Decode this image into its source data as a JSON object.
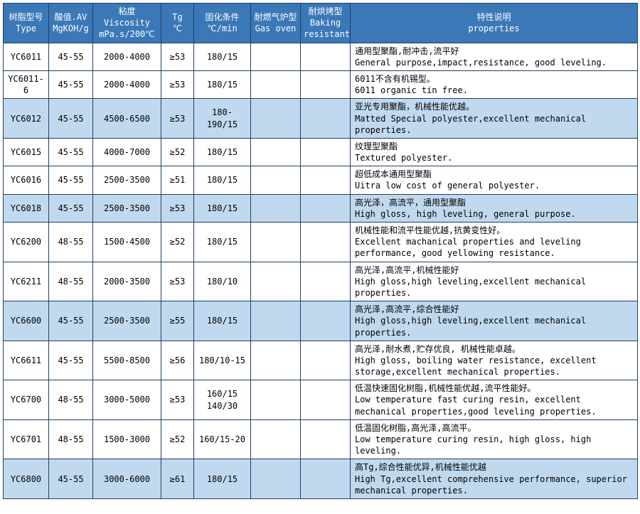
{
  "table": {
    "header_bg": "#3b78b8",
    "header_fg": "#ffffff",
    "border_color": "#1f3f66",
    "shade_bg": "#c1d9ef",
    "plain_bg": "#ffffff",
    "columns": [
      {
        "zh": "树脂型号",
        "en": "Type"
      },
      {
        "zh": "酸值.AV",
        "en": "MgKOH/g"
      },
      {
        "zh": "粘度",
        "en": "Viscosity",
        "en2": "mPa.s/200℃"
      },
      {
        "zh": "Tg",
        "en": "℃"
      },
      {
        "zh": "固化条件",
        "en": "℃/min"
      },
      {
        "zh": "耐燃气炉型",
        "en": "Gas oven"
      },
      {
        "zh": "耐烘烤型",
        "en": "Baking",
        "en2": "resistant"
      },
      {
        "zh": "特性说明",
        "en": "properties"
      }
    ],
    "rows": [
      {
        "shade": false,
        "type": "YC6011",
        "av": "45-55",
        "visc": "2000-4000",
        "tg": "≥53",
        "cure": "180/15",
        "gas": "",
        "bake": "",
        "zh": "通用型聚酯,耐冲击,流平好",
        "en": "General purpose,impact,resistance, good leveling."
      },
      {
        "shade": false,
        "type": "YC6011-6",
        "av": "45-55",
        "visc": "2000-4000",
        "tg": "≥53",
        "cure": "180/15",
        "gas": "",
        "bake": "",
        "zh": "6011不含有机锡型。",
        "en": "6011  organic tin free."
      },
      {
        "shade": true,
        "type": "YC6012",
        "av": "45-55",
        "visc": "4500-6500",
        "tg": "≥53",
        "cure": "180-190/15",
        "gas": "",
        "bake": "",
        "zh": "亚光专用聚酯，机械性能优越。",
        "en": "Matted Special polyester,excellent mechanical properties."
      },
      {
        "shade": false,
        "type": "YC6015",
        "av": "45-55",
        "visc": "4000-7000",
        "tg": "≥52",
        "cure": "180/15",
        "gas": "",
        "bake": "",
        "zh": "纹理型聚酯",
        "en": "Textured polyester."
      },
      {
        "shade": false,
        "type": "YC6016",
        "av": "45-55",
        "visc": "2500-3500",
        "tg": "≥51",
        "cure": "180/15",
        "gas": "",
        "bake": "",
        "zh": "超低成本通用型聚酯",
        "en": "Uitra low cost of general polyester."
      },
      {
        "shade": true,
        "type": "YC6018",
        "av": "45-55",
        "visc": "2500-3500",
        "tg": "≥53",
        "cure": "180/15",
        "gas": "",
        "bake": "",
        "zh": "高光泽，高流平，通用型聚酯",
        "en": "High gloss, high leveling, general purpose."
      },
      {
        "shade": false,
        "type": "YC6200",
        "av": "48-55",
        "visc": "1500-4500",
        "tg": "≥52",
        "cure": "180/15",
        "gas": "",
        "bake": "",
        "zh": "机械性能和流平性能优越,抗黄变性好。",
        "en": "Excellent machanical properties and leveling performance, good yellowing resistance."
      },
      {
        "shade": false,
        "type": "YC6211",
        "av": "48-55",
        "visc": "2000-3500",
        "tg": "≥53",
        "cure": "180/10",
        "gas": "",
        "bake": "",
        "zh": "高光泽,高流平,机械性能好",
        "en": "High gloss,high leveling,excellent mechanical properties."
      },
      {
        "shade": true,
        "type": "YC6600",
        "av": "45-55",
        "visc": "2500-3500",
        "tg": "≥55",
        "cure": "180/15",
        "gas": "",
        "bake": "",
        "zh": "高光泽,高流平,综合性能好",
        "en": "High gloss,high leveling,excellent mechanical properties."
      },
      {
        "shade": false,
        "type": "YC6611",
        "av": "45-55",
        "visc": "5500-8500",
        "tg": "≥56",
        "cure": "180/10-15",
        "gas": "",
        "bake": "",
        "zh": "高光泽,耐水煮,贮存优良, 机械性能卓越。",
        "en": "High gloss, boiling water resistance, excellent storage,excellent mechanical properties."
      },
      {
        "shade": false,
        "type": "YC6700",
        "av": "48-55",
        "visc": "3000-5000",
        "tg": "≥53",
        "cure": "160/15\n140/30",
        "gas": "",
        "bake": "",
        "zh": "低温快速固化树脂,机械性能优越,流平性能好。",
        "en": "Low temperature fast curing resin, excellent mechanical properties,good leveling properties."
      },
      {
        "shade": false,
        "type": "YC6701",
        "av": "48-55",
        "visc": "1500-3000",
        "tg": "≥52",
        "cure": "160/15-20",
        "gas": "",
        "bake": "",
        "zh": "低温固化树脂,高光泽,高流平。",
        "en": "Low temperature curing resin, high gloss, high leveling."
      },
      {
        "shade": true,
        "type": "YC6800",
        "av": "45-55",
        "visc": "3000-6000",
        "tg": "≥61",
        "cure": "180/15",
        "gas": "",
        "bake": "",
        "zh": "高Tg,综合性能优异,机械性能优越",
        "en": "High Tg,excellent comprehensive performance, superior mechanical properties."
      }
    ]
  }
}
